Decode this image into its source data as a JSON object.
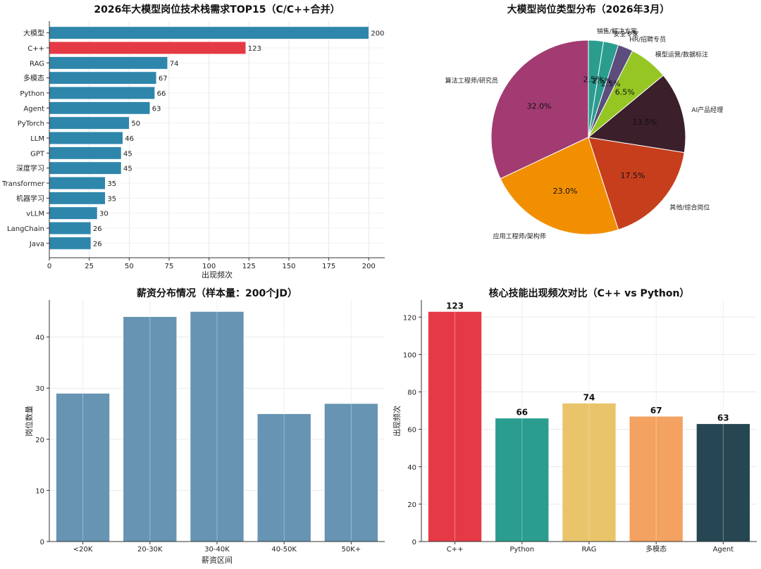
{
  "chart_data": [
    {
      "type": "bar",
      "orientation": "horizontal",
      "title": "2026年大模型岗位技术栈需求TOP15（C/C++合并）",
      "xlabel": "出现频次",
      "ylabel": "",
      "categories": [
        "大模型",
        "C++",
        "RAG",
        "多模态",
        "Python",
        "Agent",
        "PyTorch",
        "LLM",
        "GPT",
        "深度学习",
        "Transformer",
        "机器学习",
        "vLLM",
        "LangChain",
        "Java"
      ],
      "values": [
        200,
        123,
        74,
        67,
        66,
        63,
        50,
        46,
        45,
        45,
        35,
        35,
        30,
        26,
        26
      ],
      "xlim": [
        0,
        210
      ],
      "xticks": [
        0,
        25,
        50,
        75,
        100,
        125,
        150,
        175,
        200
      ],
      "grid": true,
      "colors": {
        "default": "#2E86AB",
        "highlight": "#E63946"
      },
      "highlight": "C++"
    },
    {
      "type": "pie",
      "title": "大模型岗位类型分布（2026年3月）",
      "labels": [
        "算法工程师/研究员",
        "应用工程师/架构师",
        "其他/综合岗位",
        "AI产品经理",
        "模型运营/数据标注",
        "HR/招聘专员",
        "安全专家",
        "销售/解决方案"
      ],
      "values": [
        32.0,
        23.0,
        17.5,
        13.5,
        6.5,
        2.5,
        2.5,
        2.5
      ],
      "pct_labels": [
        "32.0%",
        "23.0%",
        "17.5%",
        "13.5%",
        "6.5%",
        "2.5%",
        "2.5%",
        "2.5%"
      ],
      "colors": [
        "#A23B72",
        "#F18F01",
        "#C73E1D",
        "#3B1F2B",
        "#95C623",
        "#5C4D7D",
        "#2A9D8F",
        "#2A9D8F"
      ]
    },
    {
      "type": "bar",
      "title": "薪资分布情况（样本量：200个JD）",
      "xlabel": "薪资区间",
      "ylabel": "岗位数量",
      "categories": [
        "<20K",
        "20-30K",
        "30-40K",
        "40-50K",
        "50K+"
      ],
      "values": [
        29,
        44,
        45,
        25,
        27
      ],
      "ylim": [
        0,
        47.25
      ],
      "yticks": [
        0,
        10,
        20,
        30,
        40
      ],
      "grid": true,
      "colors": {
        "bar": "#5E8EAE"
      }
    },
    {
      "type": "bar",
      "title": "核心技能出现频次对比（C++ vs Python）",
      "xlabel": "",
      "ylabel": "出现频次",
      "categories": [
        "C++",
        "Python",
        "RAG",
        "多模态",
        "Agent"
      ],
      "values": [
        123,
        66,
        74,
        67,
        63
      ],
      "value_labels": [
        "123",
        "66",
        "74",
        "67",
        "63"
      ],
      "ylim": [
        0,
        129.15
      ],
      "yticks": [
        0,
        20,
        40,
        60,
        80,
        100,
        120
      ],
      "grid": true,
      "colors": [
        "#E63946",
        "#2A9D8F",
        "#E9C46A",
        "#F4A261",
        "#264653"
      ]
    }
  ]
}
